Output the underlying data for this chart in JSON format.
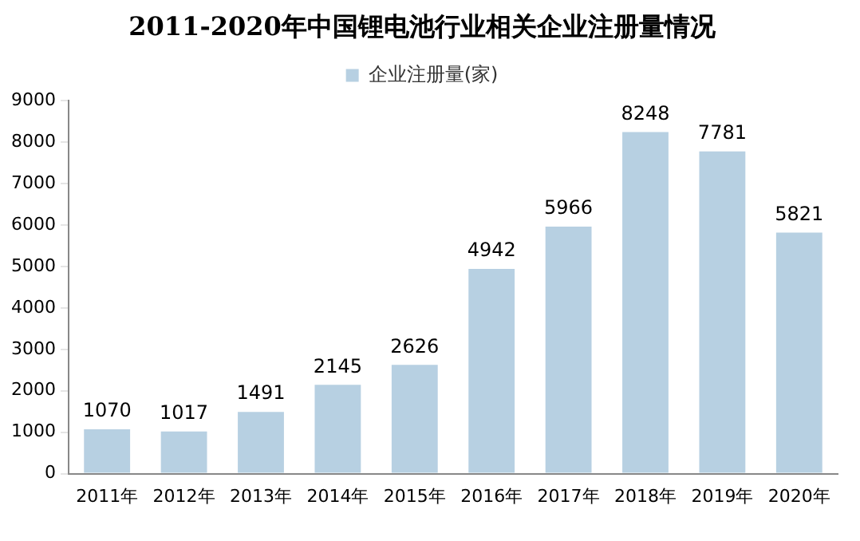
{
  "chart_data": {
    "type": "bar",
    "title": "2011-2020年中国锂电池行业相关企业注册量情况",
    "categories": [
      "2011年",
      "2012年",
      "2013年",
      "2014年",
      "2015年",
      "2016年",
      "2017年",
      "2018年",
      "2019年",
      "2020年"
    ],
    "series": [
      {
        "name": "企业注册量(家)",
        "color": "#b7d0e2",
        "values": [
          1070,
          1017,
          1491,
          2145,
          2626,
          4942,
          5966,
          8248,
          7781,
          5821
        ]
      }
    ],
    "ylim": [
      0,
      9000
    ],
    "yticks": [
      0,
      1000,
      2000,
      3000,
      4000,
      5000,
      6000,
      7000,
      8000,
      9000
    ],
    "grid": false,
    "legend": "top",
    "data_labels": true
  }
}
